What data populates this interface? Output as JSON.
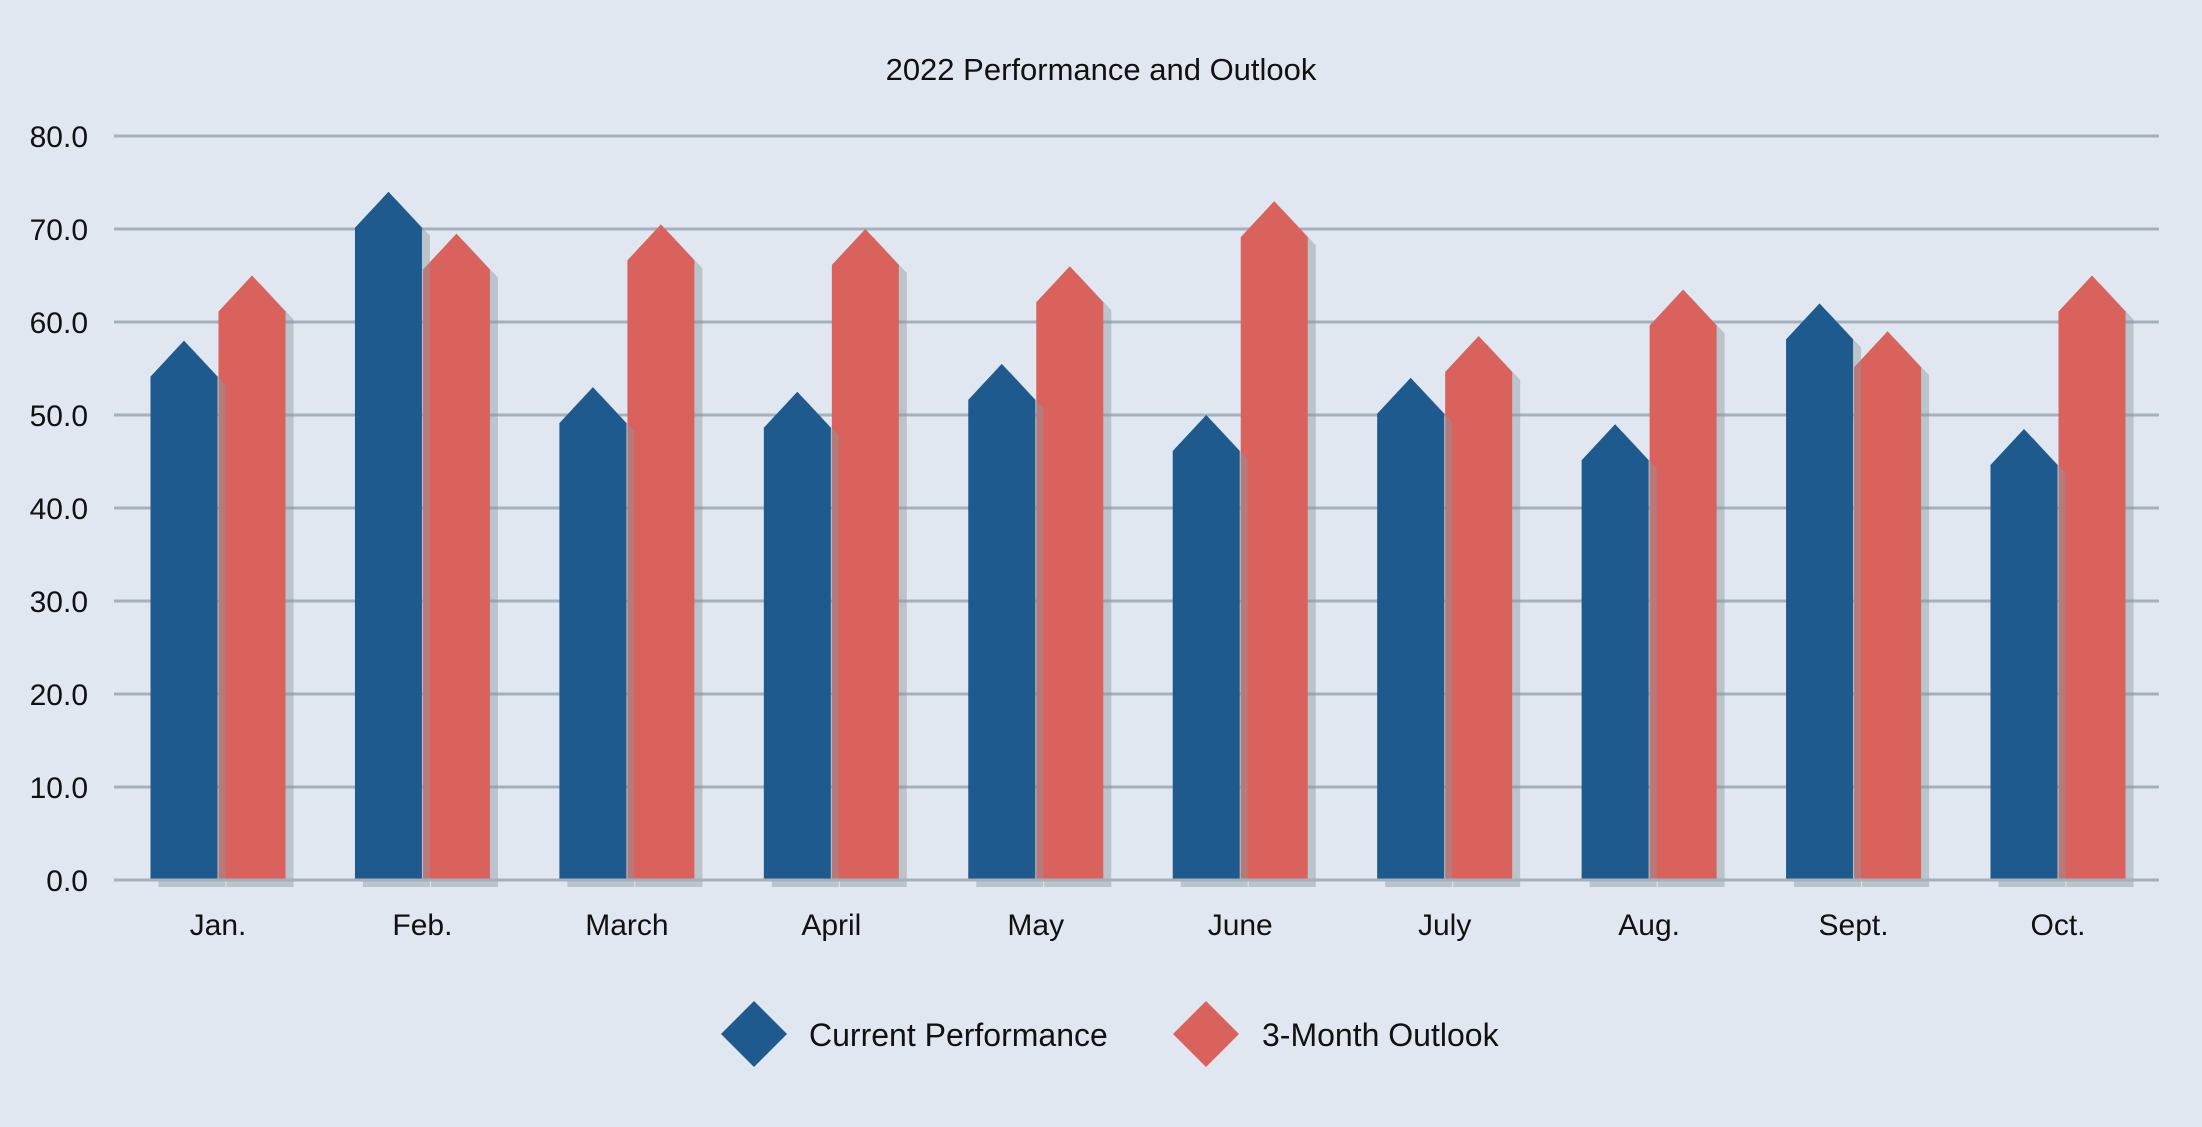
{
  "chart_data": {
    "type": "bar",
    "title": "2022 Performance and Outlook",
    "xlabel": "",
    "ylabel": "",
    "categories": [
      "Jan.",
      "Feb.",
      "March",
      "April",
      "May",
      "June",
      "July",
      "Aug.",
      "Sept.",
      "Oct."
    ],
    "series": [
      {
        "name": "Current Performance",
        "color": "#1f5a8e",
        "values": [
          58.0,
          74.0,
          53.0,
          52.5,
          55.5,
          50.0,
          54.0,
          49.0,
          62.0,
          48.5
        ]
      },
      {
        "name": "3-Month Outlook",
        "color": "#d9625c",
        "values": [
          65.0,
          69.5,
          70.5,
          70.0,
          66.0,
          73.0,
          58.5,
          63.5,
          59.0,
          65.0
        ]
      }
    ],
    "ylim": [
      0,
      80
    ],
    "yticks": [
      "0.0",
      "10.0",
      "20.0",
      "30.0",
      "40.0",
      "50.0",
      "60.0",
      "70.0",
      "80.0"
    ],
    "grid": true,
    "legend_position": "bottom"
  }
}
